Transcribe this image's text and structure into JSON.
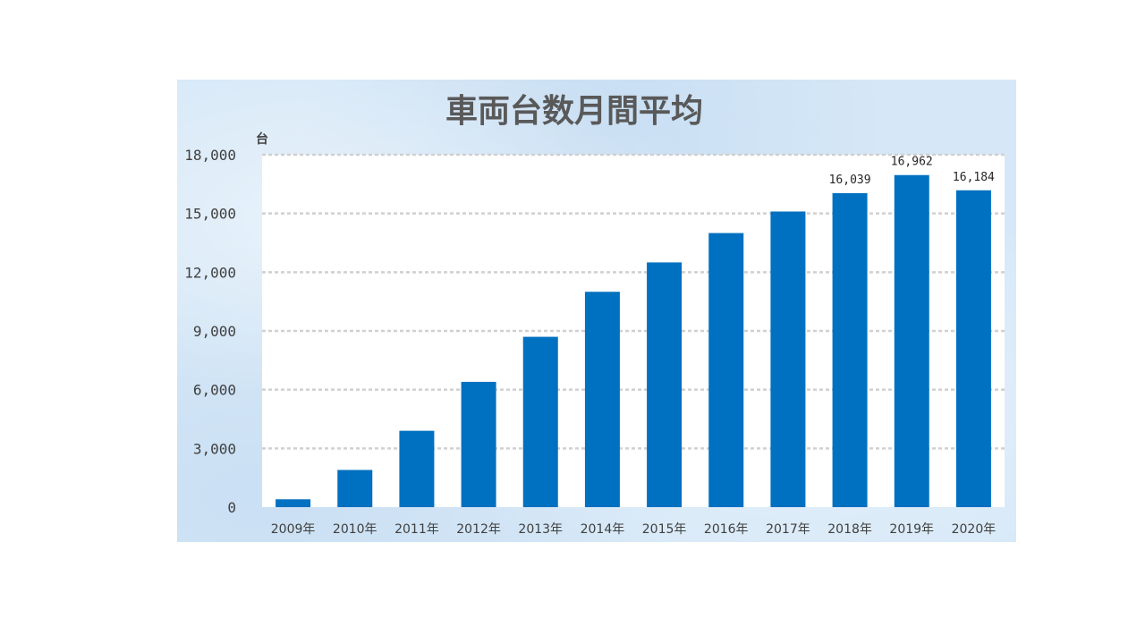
{
  "chart_data": {
    "type": "bar",
    "title": "車両台数月間平均",
    "unit_label": "台",
    "categories": [
      "2009年",
      "2010年",
      "2011年",
      "2012年",
      "2013年",
      "2014年",
      "2015年",
      "2016年",
      "2017年",
      "2018年",
      "2019年",
      "2020年"
    ],
    "values": [
      400,
      1900,
      3900,
      6400,
      8700,
      11000,
      12500,
      14000,
      15100,
      16039,
      16962,
      16184
    ],
    "data_labels": {
      "9": "16,039",
      "10": "16,962",
      "11": "16,184"
    },
    "ylim": [
      0,
      18000
    ],
    "yticks": [
      0,
      3000,
      6000,
      9000,
      12000,
      15000,
      18000
    ],
    "ytick_labels": [
      "0",
      "3,000",
      "6,000",
      "9,000",
      "12,000",
      "15,000",
      "18,000"
    ],
    "grid": true,
    "legend": "none",
    "colors": {
      "bar": "#0070c0",
      "grid": "#d0d0d0",
      "plot_bg": "#ffffff",
      "panel_bg": "#d6e8f7"
    }
  }
}
